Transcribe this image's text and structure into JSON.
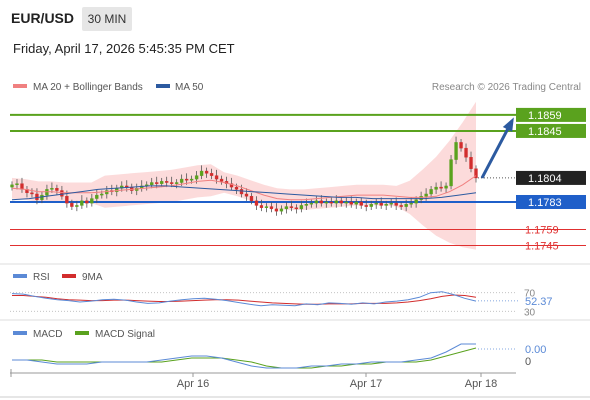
{
  "header": {
    "pair": "EUR/USD",
    "timeframe": "30 MIN",
    "datetime": "Friday, April 17, 2026 5:45:35 PM CET"
  },
  "legend": {
    "items": [
      {
        "label": "MA 20 + Bollinger Bands",
        "color": "#f08080"
      },
      {
        "label": "MA 50",
        "color": "#2c5aa0"
      }
    ],
    "credit": "Research © 2026 Trading Central"
  },
  "colors": {
    "green_level": "#5aa21e",
    "blue_level": "#1f5fc9",
    "red_level": "#e03030",
    "candle_up": "#5aa21e",
    "candle_down": "#d22d2d",
    "band_fill": "#fbd5d5",
    "ma20": "#f08080",
    "ma50": "#2c5aa0",
    "arrow": "#2c5aa0",
    "rsi_line": "#5b8ad6",
    "rsi_ma": "#d22d2d",
    "macd_line": "#5b8ad6",
    "macd_signal": "#5aa21e"
  },
  "chart_data": [
    {
      "type": "candlestick",
      "title": "EUR/USD",
      "timeframe": "30 MIN",
      "x_labels": [
        "Apr 16",
        "Apr 17",
        "Apr 18"
      ],
      "ylim": [
        1.1735,
        1.1872
      ],
      "levels": [
        {
          "value": 1.1859,
          "label": "1.1859",
          "role": "resistance",
          "color": "#5aa21e"
        },
        {
          "value": 1.1845,
          "label": "1.1845",
          "role": "resistance",
          "color": "#5aa21e"
        },
        {
          "value": 1.1804,
          "label": "1.1804",
          "role": "last price"
        },
        {
          "value": 1.1783,
          "label": "1.1783",
          "role": "pivot",
          "color": "#1f5fc9"
        },
        {
          "value": 1.1759,
          "label": "1.1759",
          "role": "support",
          "color": "#e03030"
        },
        {
          "value": 1.1745,
          "label": "1.1745",
          "role": "support",
          "color": "#e03030"
        }
      ],
      "last_price": 1.1804,
      "close_series": [
        1.1798,
        1.1799,
        1.1794,
        1.1791,
        1.179,
        1.1785,
        1.1789,
        1.1794,
        1.1795,
        1.1793,
        1.1788,
        1.1782,
        1.1779,
        1.178,
        1.1784,
        1.1782,
        1.1786,
        1.1789,
        1.179,
        1.1793,
        1.1792,
        1.1795,
        1.1797,
        1.1796,
        1.1793,
        1.1795,
        1.1797,
        1.1798,
        1.18,
        1.1799,
        1.1801,
        1.18,
        1.1799,
        1.18,
        1.1803,
        1.1802,
        1.1803,
        1.1806,
        1.181,
        1.1808,
        1.1806,
        1.1803,
        1.1801,
        1.1799,
        1.1796,
        1.1794,
        1.179,
        1.1788,
        1.1784,
        1.178,
        1.1778,
        1.1779,
        1.1777,
        1.1775,
        1.1777,
        1.1779,
        1.1778,
        1.1777,
        1.178,
        1.1781,
        1.1782,
        1.1784,
        1.1782,
        1.1783,
        1.1782,
        1.1784,
        1.1782,
        1.1783,
        1.1781,
        1.1783,
        1.178,
        1.1779,
        1.1781,
        1.1782,
        1.178,
        1.1781,
        1.1782,
        1.178,
        1.1779,
        1.1781,
        1.1782,
        1.1785,
        1.1788,
        1.179,
        1.1794,
        1.1796,
        1.1795,
        1.1797,
        1.182,
        1.1835,
        1.183,
        1.1822,
        1.1812,
        1.1804
      ],
      "ma20_series": [
        1.1795,
        1.1794,
        1.1792,
        1.1792,
        1.1791,
        1.1791,
        1.1791,
        1.1792,
        1.1793,
        1.1794,
        1.1795,
        1.1796,
        1.1797,
        1.1799,
        1.1801,
        1.1802,
        1.18,
        1.1797,
        1.1793,
        1.1789,
        1.1786,
        1.1785,
        1.1785,
        1.1786,
        1.1787,
        1.1788,
        1.1789,
        1.1789,
        1.1789,
        1.1788,
        1.1787,
        1.1787,
        1.1788,
        1.1792,
        1.1798,
        1.1806
      ],
      "ma50_series": [
        1.1785,
        1.1786,
        1.1788,
        1.179,
        1.1792,
        1.1794,
        1.1795,
        1.1796,
        1.1797,
        1.1797,
        1.1796,
        1.1795,
        1.1794,
        1.1793,
        1.1792,
        1.1791,
        1.179,
        1.1789,
        1.1788,
        1.1787,
        1.1787,
        1.1786,
        1.1786,
        1.1786,
        1.1786,
        1.1787,
        1.1789,
        1.1791
      ],
      "forecast_arrow": {
        "from": 1.1804,
        "to": 1.1859
      }
    },
    {
      "type": "line",
      "title": "RSI",
      "series": [
        {
          "name": "RSI",
          "color": "#5b8ad6"
        },
        {
          "name": "9MA",
          "color": "#d22d2d"
        }
      ],
      "last_value": 52.37,
      "ticks": [
        70,
        30
      ],
      "rsi_series": [
        68,
        67,
        62,
        58,
        55,
        53,
        50,
        52,
        55,
        56,
        54,
        50,
        47,
        48,
        52,
        55,
        57,
        58,
        56,
        53,
        49,
        45,
        42,
        44,
        43,
        42,
        46,
        44,
        48,
        47,
        45,
        48,
        46,
        50,
        52,
        55,
        60,
        70,
        72,
        66,
        58,
        52
      ],
      "rsi_ma_series": [
        64,
        64,
        62,
        60,
        57,
        55,
        54,
        53,
        53,
        54,
        54,
        53,
        52,
        51,
        51,
        52,
        53,
        54,
        55,
        55,
        54,
        52,
        50,
        48,
        47,
        46,
        45,
        45,
        46,
        46,
        46,
        47,
        47,
        47,
        48,
        50,
        53,
        57,
        62,
        65,
        64,
        60
      ]
    },
    {
      "type": "line",
      "title": "MACD",
      "series": [
        {
          "name": "MACD",
          "color": "#5b8ad6"
        },
        {
          "name": "MACD Signal",
          "color": "#5aa21e"
        }
      ],
      "value_labels": [
        "0.00",
        "0"
      ],
      "macd_series": [
        0.0,
        0.0,
        -0.0001,
        -0.0002,
        -0.0002,
        -0.0002,
        -0.0001,
        -0.0001,
        -0.0001,
        -0.0001,
        0.0,
        0.0001,
        0.0002,
        0.0002,
        0.0001,
        -0.0001,
        -0.0003,
        -0.0004,
        -0.0004,
        -0.0004,
        -0.0003,
        -0.0003,
        -0.0002,
        -0.0002,
        -0.0001,
        -0.0001,
        -0.0001,
        0.0,
        0.0001,
        0.0004,
        0.0008,
        0.0008
      ],
      "signal_series": [
        0.0,
        0.0,
        0.0,
        -0.0001,
        -0.0001,
        -0.0001,
        -0.0001,
        -0.0001,
        -0.0001,
        -0.0001,
        -0.0001,
        0.0,
        0.0001,
        0.0001,
        0.0001,
        0.0,
        -0.0001,
        -0.0003,
        -0.0004,
        -0.0004,
        -0.0004,
        -0.0003,
        -0.0003,
        -0.0002,
        -0.0002,
        -0.0001,
        -0.0001,
        -0.0001,
        0.0,
        0.0002,
        0.0004,
        0.0006
      ]
    }
  ]
}
